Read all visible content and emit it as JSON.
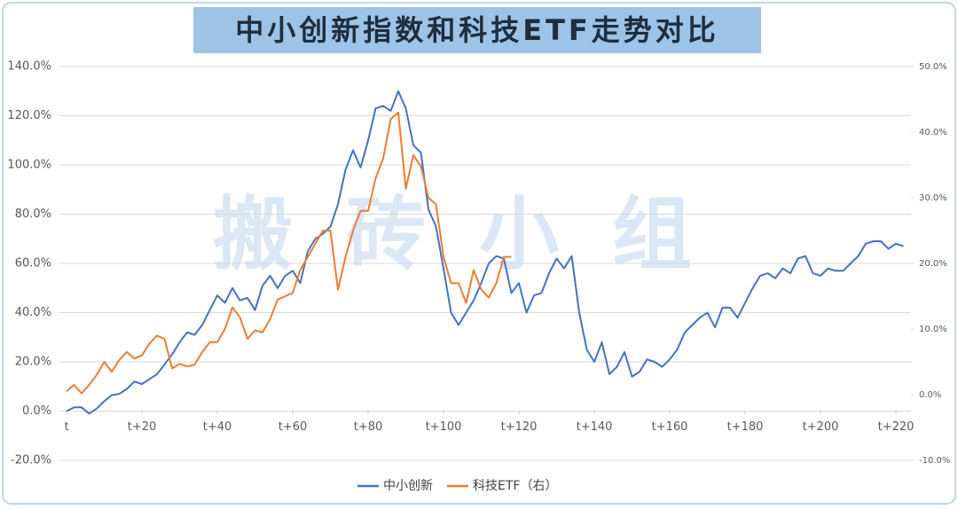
{
  "chart_data": {
    "type": "line",
    "title": "中小创新指数和科技ETF走势对比",
    "watermark": "搬砖小组",
    "x": [
      0,
      2,
      4,
      6,
      8,
      10,
      12,
      14,
      16,
      18,
      20,
      22,
      24,
      26,
      28,
      30,
      32,
      34,
      36,
      38,
      40,
      42,
      44,
      46,
      48,
      50,
      52,
      54,
      56,
      58,
      60,
      62,
      64,
      66,
      68,
      70,
      72,
      74,
      76,
      78,
      80,
      82,
      84,
      86,
      88,
      90,
      92,
      94,
      96,
      98,
      100,
      102,
      104,
      106,
      108,
      110,
      112,
      114,
      116,
      118,
      120,
      122,
      124,
      126,
      128,
      130,
      132,
      134,
      136,
      138,
      140,
      142,
      144,
      146,
      148,
      150,
      152,
      154,
      156,
      158,
      160,
      162,
      164,
      166,
      168,
      170,
      172,
      174,
      176,
      178,
      180,
      182,
      184,
      186,
      188,
      190,
      192,
      194,
      196,
      198,
      200,
      202,
      204,
      206,
      208,
      210,
      212,
      214,
      216,
      218,
      220,
      222
    ],
    "xlim": [
      -2,
      224
    ],
    "xticks": [
      {
        "value": 0,
        "label": "t"
      },
      {
        "value": 20,
        "label": "t+20"
      },
      {
        "value": 40,
        "label": "t+40"
      },
      {
        "value": 60,
        "label": "t+60"
      },
      {
        "value": 80,
        "label": "t+80"
      },
      {
        "value": 100,
        "label": "t+100"
      },
      {
        "value": 120,
        "label": "t+120"
      },
      {
        "value": 140,
        "label": "t+140"
      },
      {
        "value": 160,
        "label": "t+160"
      },
      {
        "value": 180,
        "label": "t+180"
      },
      {
        "value": 200,
        "label": "t+200"
      },
      {
        "value": 220,
        "label": "t+220"
      }
    ],
    "ylim": [
      -20,
      140
    ],
    "yticks": [
      {
        "value": -20,
        "label": "-20.0%"
      },
      {
        "value": 0,
        "label": "0.0%"
      },
      {
        "value": 20,
        "label": "20.0%"
      },
      {
        "value": 40,
        "label": "40.0%"
      },
      {
        "value": 60,
        "label": "60.0%"
      },
      {
        "value": 80,
        "label": "80.0%"
      },
      {
        "value": 100,
        "label": "100.0%"
      },
      {
        "value": 120,
        "label": "120.0%"
      },
      {
        "value": 140,
        "label": "140.0%"
      }
    ],
    "y2lim": [
      -10,
      50
    ],
    "y2ticks": [
      {
        "value": -10,
        "label": "-10.0%"
      },
      {
        "value": 0,
        "label": "0.0%"
      },
      {
        "value": 10,
        "label": "10.0%"
      },
      {
        "value": 20,
        "label": "20.0%"
      },
      {
        "value": 30,
        "label": "30.0%"
      },
      {
        "value": 40,
        "label": "40.0%"
      },
      {
        "value": 50,
        "label": "50.0%"
      }
    ],
    "grid": true,
    "legend": "bottom",
    "series": [
      {
        "name": "中小创新",
        "color": "#4472c4",
        "values": [
          0,
          1.5,
          1.5,
          -1,
          1,
          4,
          6.5,
          7,
          9,
          12,
          11,
          13,
          15,
          19,
          23,
          28,
          32,
          31,
          35,
          41,
          47,
          44,
          50,
          45,
          46,
          41,
          51,
          55,
          50,
          55,
          57,
          52,
          65,
          70,
          72,
          75,
          84,
          98,
          106,
          99,
          110,
          123,
          124,
          122,
          130,
          123,
          108,
          105,
          82,
          75,
          58,
          40,
          35,
          40,
          45,
          52,
          60,
          63,
          62,
          48,
          52,
          40,
          47,
          48,
          56,
          62,
          58,
          63,
          40,
          25,
          20,
          28,
          15,
          18,
          24,
          14,
          16,
          21,
          20,
          18,
          21,
          25,
          32,
          35,
          38,
          40,
          34,
          42,
          42,
          38,
          44,
          50,
          55,
          56,
          54,
          58,
          56,
          62,
          63,
          56,
          55,
          58,
          57,
          57,
          60,
          63,
          68,
          69,
          69,
          66,
          68,
          67
        ]
      },
      {
        "name": "科技ETF（右）",
        "color": "#ed7d31",
        "axis": "y2",
        "values": [
          0.5,
          1.5,
          0.2,
          1.5,
          3,
          5,
          3.5,
          5.3,
          6.5,
          5.5,
          6,
          7.8,
          9,
          8.5,
          4,
          4.7,
          4.3,
          4.6,
          6.5,
          8,
          8,
          10,
          13.3,
          11.8,
          8.5,
          9.8,
          9.5,
          11.5,
          14.5,
          15,
          15.5,
          19,
          21,
          23,
          25,
          25,
          16,
          21,
          25,
          28,
          28,
          33,
          36,
          42,
          43,
          31.4,
          36.5,
          34.8,
          30,
          29,
          21,
          17,
          17,
          14,
          19,
          16,
          14.8,
          17,
          21,
          21,
          null,
          null,
          null,
          null,
          null,
          null,
          null,
          null,
          null,
          null,
          null,
          null,
          null,
          null,
          null,
          null,
          null,
          null,
          null,
          null,
          null,
          null,
          null,
          null,
          null,
          null,
          null,
          null,
          null,
          null,
          null,
          null,
          null,
          null,
          null,
          null,
          null,
          null,
          null,
          null,
          null,
          null,
          null,
          null,
          null,
          null,
          null,
          null,
          null,
          null,
          null,
          null
        ]
      }
    ]
  }
}
